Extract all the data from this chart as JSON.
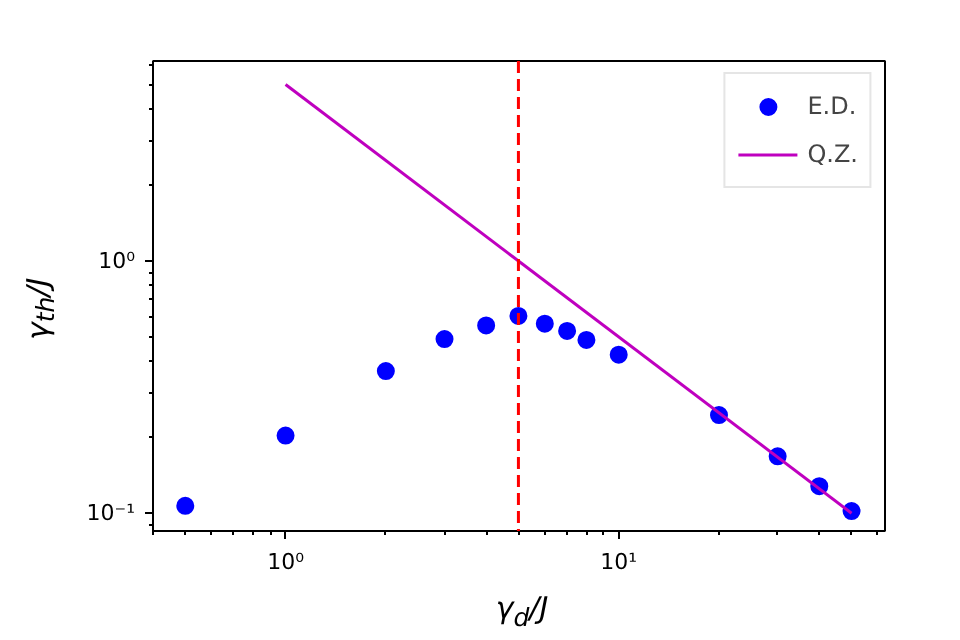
{
  "chart_data": {
    "type": "scatter",
    "xlabel": "γ$_{d}$/J",
    "ylabel": "γ$_{th}$/J",
    "log": "xy",
    "grid": false,
    "legend": "top right",
    "xlim": [
      0.4,
      63
    ],
    "ylim": [
      0.085,
      6.2
    ],
    "xticks": [
      {
        "value": 1,
        "label": "10⁰"
      },
      {
        "value": 10,
        "label": "10¹"
      }
    ],
    "yticks": [
      {
        "value": 0.1,
        "label": "10⁻¹"
      },
      {
        "value": 1,
        "label": "10⁰"
      }
    ],
    "series": [
      {
        "name": "E.D.",
        "marker": "circle",
        "color": "#0000ff",
        "x": [
          0.5,
          1,
          2,
          3,
          4,
          5,
          6,
          7,
          8,
          10,
          20,
          30,
          40,
          50
        ],
        "values": [
          0.107,
          0.203,
          0.366,
          0.49,
          0.555,
          0.605,
          0.564,
          0.528,
          0.486,
          0.425,
          0.245,
          0.168,
          0.128,
          0.102
        ]
      },
      {
        "name": "Q.Z.",
        "type": "line",
        "marker": "none",
        "line_style": "solid",
        "color": "#bf00bf",
        "x": [
          1,
          50
        ],
        "values": [
          5.0,
          0.1
        ]
      }
    ],
    "ref_lines": [
      {
        "axis": "x",
        "value": 5,
        "color": "#ff0000",
        "line_style": "dashed"
      }
    ]
  }
}
